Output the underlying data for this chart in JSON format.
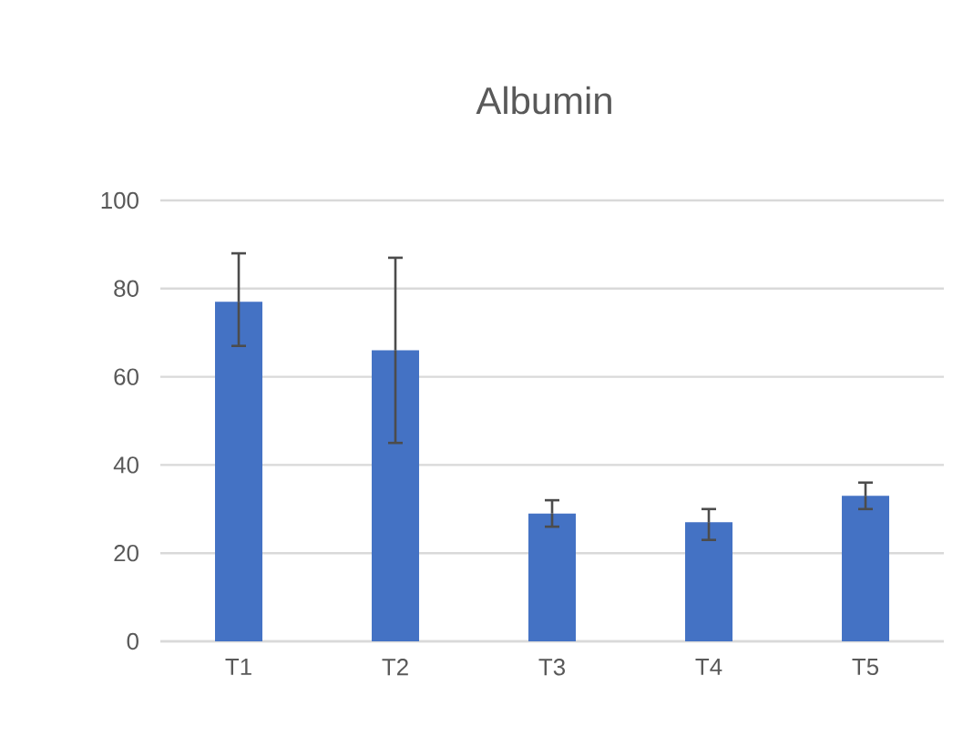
{
  "chart_data": {
    "type": "bar",
    "title": "Albumin",
    "categories": [
      "T1",
      "T2",
      "T3",
      "T4",
      "T5"
    ],
    "values": [
      77,
      66,
      29,
      27,
      33
    ],
    "errors": [
      [
        67,
        88
      ],
      [
        45,
        87
      ],
      [
        26,
        32
      ],
      [
        23,
        30
      ],
      [
        30,
        36
      ]
    ],
    "color": "#4472c4",
    "ylim": [
      0,
      100
    ],
    "yticks": [
      0,
      20,
      40,
      60,
      80,
      100
    ],
    "grid": "y"
  }
}
